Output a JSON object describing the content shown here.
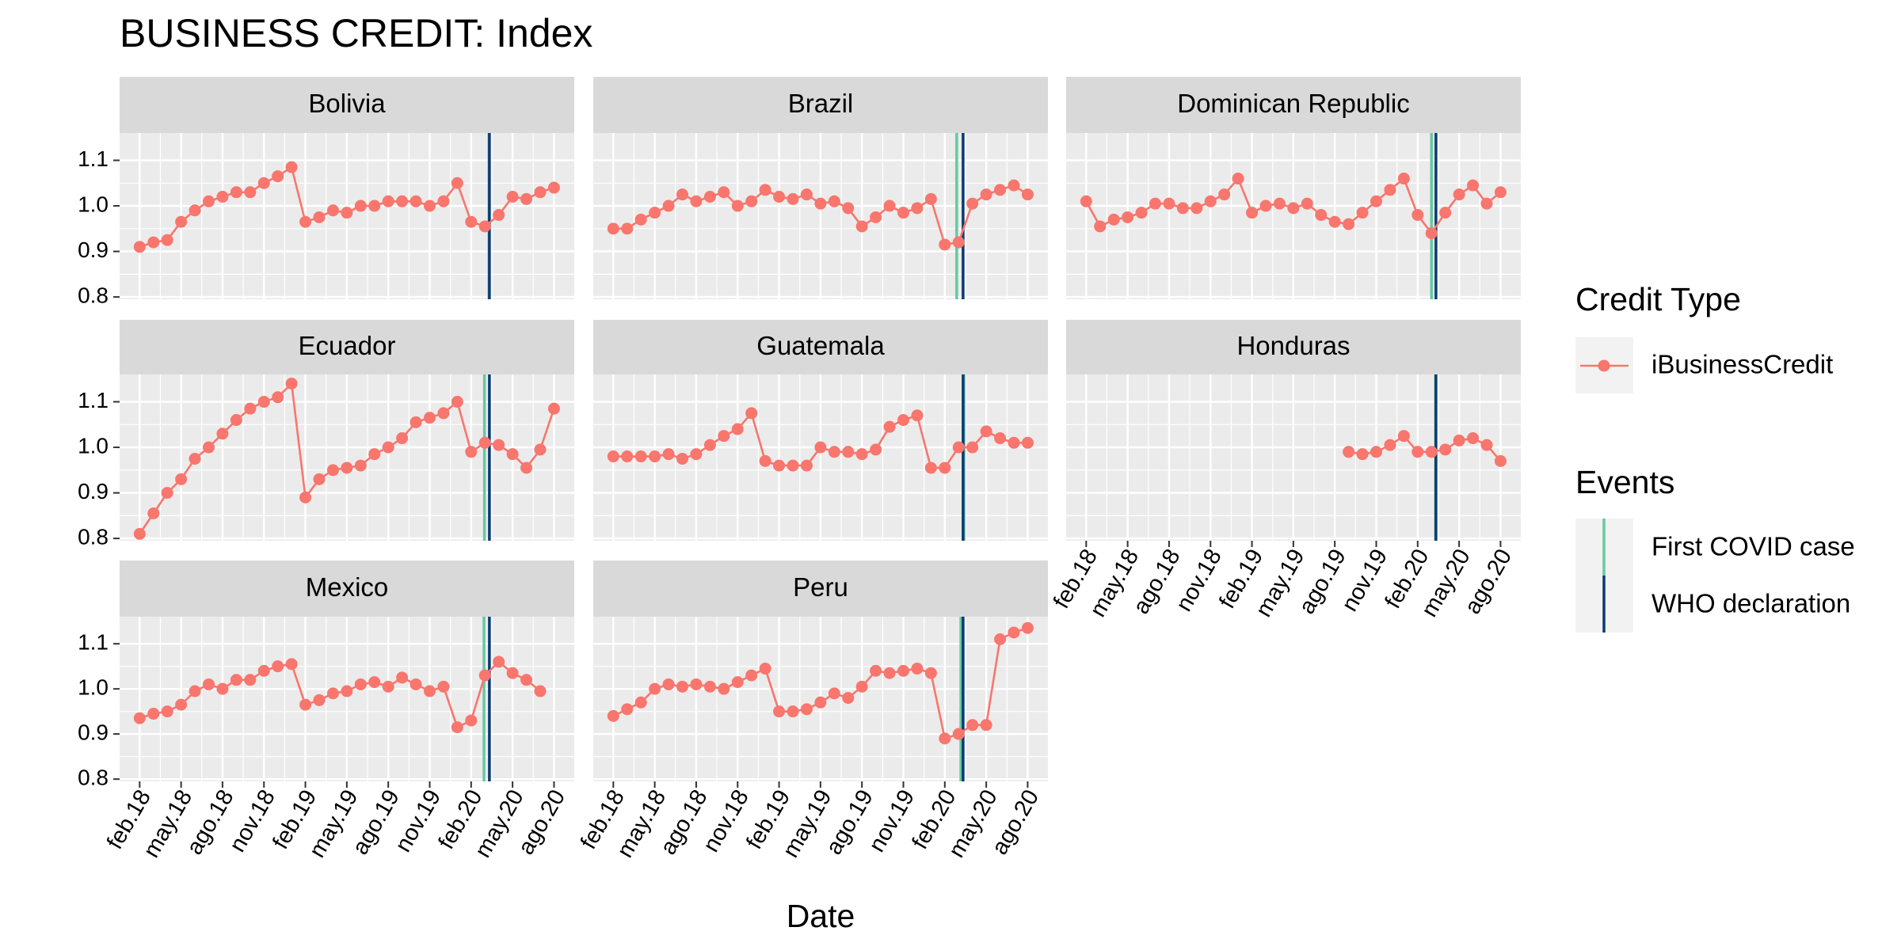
{
  "chart_data": {
    "type": "line",
    "title": "BUSINESS CREDIT: Index",
    "xlabel": "Date",
    "x": [
      "2018-02",
      "2018-03",
      "2018-04",
      "2018-05",
      "2018-06",
      "2018-07",
      "2018-08",
      "2018-09",
      "2018-10",
      "2018-11",
      "2018-12",
      "2019-01",
      "2019-02",
      "2019-03",
      "2019-04",
      "2019-05",
      "2019-06",
      "2019-07",
      "2019-08",
      "2019-09",
      "2019-10",
      "2019-11",
      "2019-12",
      "2020-01",
      "2020-02",
      "2020-03",
      "2020-04",
      "2020-05",
      "2020-06",
      "2020-07",
      "2020-08"
    ],
    "xlim": [
      "2017-12-18",
      "2020-09-15"
    ],
    "xticks": [
      {
        "value": "2018-02",
        "label": "feb.18"
      },
      {
        "value": "2018-05",
        "label": "may.18"
      },
      {
        "value": "2018-08",
        "label": "ago.18"
      },
      {
        "value": "2018-11",
        "label": "nov.18"
      },
      {
        "value": "2019-02",
        "label": "feb.19"
      },
      {
        "value": "2019-05",
        "label": "may.19"
      },
      {
        "value": "2019-08",
        "label": "ago.19"
      },
      {
        "value": "2019-11",
        "label": "nov.19"
      },
      {
        "value": "2020-02",
        "label": "feb.20"
      },
      {
        "value": "2020-05",
        "label": "may.20"
      },
      {
        "value": "2020-08",
        "label": "ago.20"
      }
    ],
    "ylim": [
      0.795,
      1.16
    ],
    "yticks": [
      0.8,
      0.9,
      {
        "value": 1,
        "label": "1.0"
      },
      1.1
    ],
    "grid": true,
    "legend_title": "Credit Type",
    "series": [
      {
        "name": "iBusinessCredit",
        "color": "#F8766D"
      }
    ],
    "events_title": "Events",
    "events": [
      {
        "name": "First COVID case",
        "color": "#66C9A0"
      },
      {
        "name": "WHO declaration",
        "color": "#0B3A73"
      }
    ],
    "facets": [
      {
        "title": "Bolivia",
        "event_dates": [
          "2020-03-10",
          "2020-03-11"
        ],
        "values": [
          0.91,
          0.92,
          0.925,
          0.965,
          0.99,
          1.01,
          1.02,
          1.03,
          1.03,
          1.05,
          1.065,
          1.085,
          0.965,
          0.975,
          0.99,
          0.985,
          1.0,
          1.0,
          1.01,
          1.01,
          1.01,
          1.0,
          1.01,
          1.05,
          0.965,
          0.955,
          0.98,
          1.02,
          1.015,
          1.03,
          1.04
        ]
      },
      {
        "title": "Brazil",
        "event_dates": [
          "2020-02-26",
          "2020-03-11"
        ],
        "values": [
          0.95,
          0.95,
          0.97,
          0.985,
          1.0,
          1.025,
          1.01,
          1.02,
          1.03,
          1.0,
          1.01,
          1.035,
          1.02,
          1.015,
          1.025,
          1.005,
          1.01,
          0.995,
          0.955,
          0.975,
          1.0,
          0.985,
          0.995,
          1.015,
          0.915,
          0.92,
          1.005,
          1.025,
          1.035,
          1.045,
          1.025
        ]
      },
      {
        "title": "Dominican Republic",
        "event_dates": [
          "2020-03-01",
          "2020-03-11"
        ],
        "values": [
          1.01,
          0.955,
          0.97,
          0.975,
          0.985,
          1.005,
          1.005,
          0.995,
          0.995,
          1.01,
          1.025,
          1.06,
          0.985,
          1.0,
          1.005,
          0.995,
          1.005,
          0.98,
          0.965,
          0.96,
          0.985,
          1.01,
          1.035,
          1.06,
          0.98,
          0.94,
          0.985,
          1.025,
          1.045,
          1.005,
          1.03
        ]
      },
      {
        "title": "Ecuador",
        "event_dates": [
          "2020-02-29",
          "2020-03-11"
        ],
        "values": [
          0.81,
          0.855,
          0.9,
          0.93,
          0.975,
          1.0,
          1.03,
          1.06,
          1.085,
          1.1,
          1.11,
          1.14,
          0.89,
          0.93,
          0.95,
          0.955,
          0.96,
          0.985,
          1.0,
          1.02,
          1.055,
          1.065,
          1.075,
          1.1,
          0.99,
          1.01,
          1.005,
          0.985,
          0.955,
          0.995,
          1.085
        ]
      },
      {
        "title": "Guatemala",
        "event_dates": [
          "2020-03-13",
          "2020-03-11"
        ],
        "values": [
          0.98,
          0.98,
          0.98,
          0.98,
          0.985,
          0.975,
          0.985,
          1.005,
          1.025,
          1.04,
          1.075,
          0.97,
          0.96,
          0.96,
          0.96,
          1.0,
          0.99,
          0.99,
          0.985,
          0.995,
          1.045,
          1.06,
          1.07,
          0.955,
          0.955,
          1.0,
          1.0,
          1.035,
          1.02,
          1.01,
          1.01
        ]
      },
      {
        "title": "Honduras",
        "event_dates": [
          "2020-03-10",
          "2020-03-11"
        ],
        "values": [
          null,
          null,
          null,
          null,
          null,
          null,
          null,
          null,
          null,
          null,
          null,
          null,
          null,
          null,
          null,
          null,
          null,
          null,
          null,
          0.99,
          0.985,
          0.99,
          1.005,
          1.025,
          0.99,
          0.99,
          0.995,
          1.015,
          1.02,
          1.005,
          0.97
        ]
      },
      {
        "title": "Mexico",
        "event_dates": [
          "2020-02-28",
          "2020-03-11"
        ],
        "values": [
          0.935,
          0.945,
          0.95,
          0.965,
          0.995,
          1.01,
          1.0,
          1.02,
          1.02,
          1.04,
          1.05,
          1.055,
          0.965,
          0.975,
          0.99,
          0.995,
          1.01,
          1.015,
          1.005,
          1.025,
          1.01,
          0.995,
          1.005,
          0.915,
          0.93,
          1.03,
          1.06,
          1.035,
          1.02,
          0.995,
          null
        ]
      },
      {
        "title": "Peru",
        "event_dates": [
          "2020-03-06",
          "2020-03-11"
        ],
        "values": [
          0.94,
          0.955,
          0.97,
          1.0,
          1.01,
          1.005,
          1.01,
          1.005,
          1.0,
          1.015,
          1.03,
          1.045,
          0.95,
          0.95,
          0.955,
          0.97,
          0.99,
          0.98,
          1.005,
          1.04,
          1.035,
          1.04,
          1.045,
          1.035,
          0.89,
          0.9,
          0.92,
          0.92,
          1.11,
          1.125,
          1.135
        ]
      }
    ]
  }
}
